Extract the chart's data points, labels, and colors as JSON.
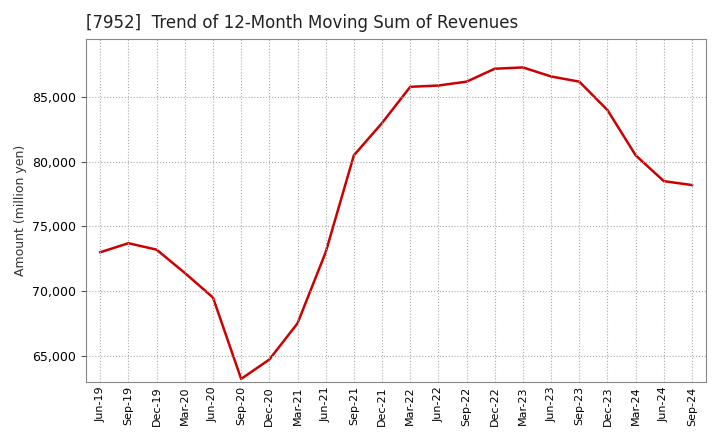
{
  "title": "[7952]  Trend of 12-Month Moving Sum of Revenues",
  "ylabel": "Amount (million yen)",
  "line_color": "#cc0000",
  "line_width": 1.8,
  "background_color": "#ffffff",
  "plot_bg_color": "#ffffff",
  "ylim": [
    63000,
    89500
  ],
  "yticks": [
    65000,
    70000,
    75000,
    80000,
    85000
  ],
  "labels": [
    "Jun-19",
    "Sep-19",
    "Dec-19",
    "Mar-20",
    "Jun-20",
    "Sep-20",
    "Dec-20",
    "Mar-21",
    "Jun-21",
    "Sep-21",
    "Dec-21",
    "Mar-22",
    "Jun-22",
    "Sep-22",
    "Dec-22",
    "Mar-23",
    "Jun-23",
    "Sep-23",
    "Dec-23",
    "Mar-24",
    "Jun-24",
    "Sep-24"
  ],
  "values": [
    73000,
    73700,
    73200,
    71400,
    69500,
    63200,
    64700,
    67500,
    73000,
    80500,
    83000,
    85800,
    85900,
    86200,
    87200,
    87300,
    86600,
    86200,
    84000,
    80500,
    78500,
    78200
  ]
}
